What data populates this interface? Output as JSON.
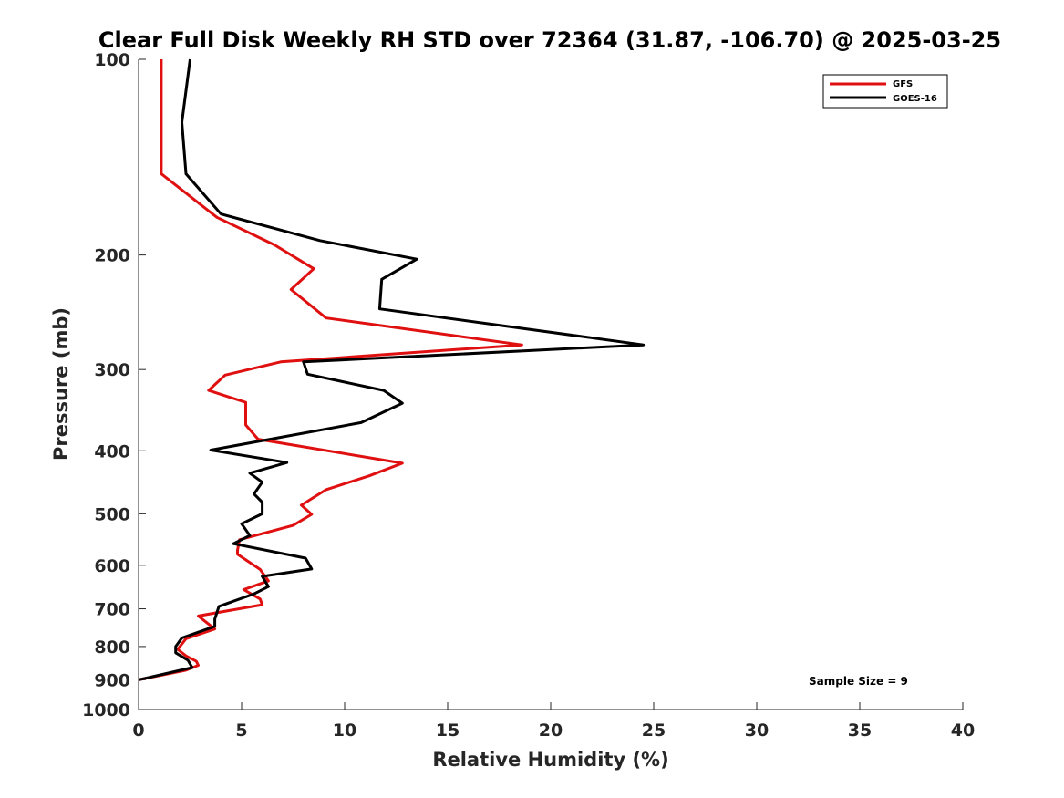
{
  "chart_data": {
    "type": "line",
    "title": "Clear Full Disk Weekly RH STD over 72364 (31.87, -106.70) @ 2025-03-25",
    "xlabel": "Relative Humidity (%)",
    "ylabel": "Pressure (mb)",
    "xlim": [
      0,
      40
    ],
    "ylim": [
      1000,
      100
    ],
    "y_scale": "log",
    "y_reversed": true,
    "x_ticks": [
      "0",
      "5",
      "10",
      "15",
      "20",
      "25",
      "30",
      "35",
      "40"
    ],
    "y_ticks": [
      "100",
      "200",
      "300",
      "400",
      "500",
      "600",
      "700",
      "800",
      "900",
      "1000"
    ],
    "grid": false,
    "legend_position": "top-right",
    "series": [
      {
        "name": "GFS",
        "color": "#e01010",
        "points": [
          [
            1.1,
            100
          ],
          [
            1.1,
            125
          ],
          [
            1.1,
            150
          ],
          [
            3.8,
            175
          ],
          [
            6.6,
            193
          ],
          [
            8.5,
            210
          ],
          [
            7.4,
            226
          ],
          [
            9.1,
            250
          ],
          [
            18.6,
            275
          ],
          [
            6.9,
            292
          ],
          [
            4.2,
            306
          ],
          [
            3.4,
            323
          ],
          [
            5.2,
            337
          ],
          [
            5.2,
            365
          ],
          [
            5.8,
            384
          ],
          [
            12.8,
            418
          ],
          [
            11.2,
            437
          ],
          [
            9.1,
            459
          ],
          [
            7.9,
            485
          ],
          [
            8.4,
            501
          ],
          [
            7.5,
            521
          ],
          [
            4.9,
            548
          ],
          [
            4.8,
            569
          ],
          [
            4.8,
            577
          ],
          [
            5.9,
            609
          ],
          [
            6.3,
            634
          ],
          [
            5.1,
            654
          ],
          [
            5.9,
            676
          ],
          [
            6.0,
            690
          ],
          [
            2.9,
            718
          ],
          [
            3.7,
            752
          ],
          [
            2.3,
            778
          ],
          [
            1.9,
            808
          ],
          [
            2.3,
            827
          ],
          [
            2.8,
            843
          ],
          [
            2.9,
            855
          ],
          [
            2.3,
            870
          ],
          [
            0.0,
            900
          ]
        ]
      },
      {
        "name": "GOES-16",
        "color": "#000000",
        "points": [
          [
            2.5,
            100
          ],
          [
            2.1,
            125
          ],
          [
            2.3,
            150
          ],
          [
            4.0,
            173
          ],
          [
            8.8,
            190
          ],
          [
            13.5,
            203
          ],
          [
            11.8,
            218
          ],
          [
            11.7,
            242
          ],
          [
            24.5,
            275
          ],
          [
            8.0,
            292
          ],
          [
            8.2,
            305
          ],
          [
            11.9,
            323
          ],
          [
            12.8,
            338
          ],
          [
            10.8,
            362
          ],
          [
            3.5,
            399
          ],
          [
            7.2,
            417
          ],
          [
            5.4,
            433
          ],
          [
            6.0,
            447
          ],
          [
            5.6,
            466
          ],
          [
            6.0,
            480
          ],
          [
            6.0,
            500
          ],
          [
            5.0,
            518
          ],
          [
            5.4,
            540
          ],
          [
            4.6,
            556
          ],
          [
            8.1,
            585
          ],
          [
            8.4,
            608
          ],
          [
            6.0,
            624
          ],
          [
            6.3,
            647
          ],
          [
            5.6,
            664
          ],
          [
            3.9,
            694
          ],
          [
            3.7,
            726
          ],
          [
            3.7,
            745
          ],
          [
            2.1,
            776
          ],
          [
            1.8,
            800
          ],
          [
            1.8,
            818
          ],
          [
            2.4,
            840
          ],
          [
            2.6,
            862
          ],
          [
            0.0,
            900
          ]
        ]
      }
    ],
    "annotations": [
      {
        "text": "Sample Size = 9"
      }
    ]
  }
}
